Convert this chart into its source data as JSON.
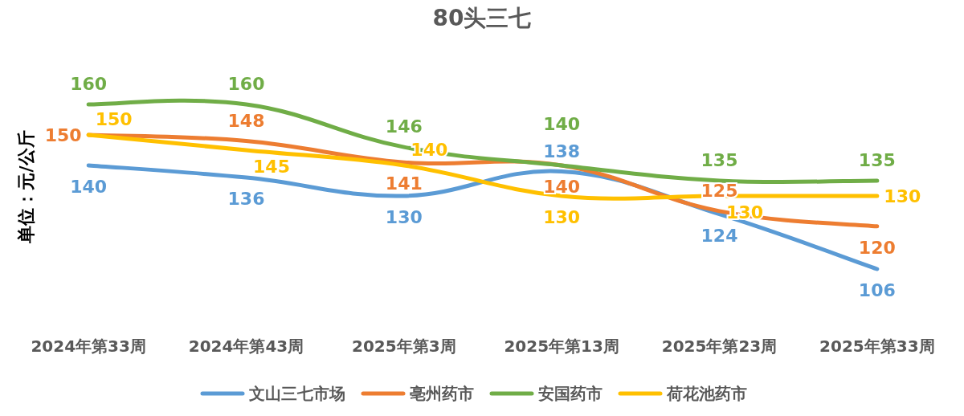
{
  "chart_data": {
    "type": "line",
    "title": "80头三七",
    "ylabel": "单位：元/公斤",
    "categories": [
      "2024年第33周",
      "2024年第43周",
      "2025年第3周",
      "2025年第13周",
      "2025年第23周",
      "2025年第33周"
    ],
    "series": [
      {
        "name": "文山三七市场",
        "color": "#5b9bd5",
        "values": [
          140,
          136,
          130,
          138,
          124,
          106
        ]
      },
      {
        "name": "亳州药市",
        "color": "#ed7d31",
        "values": [
          150,
          148,
          141,
          140,
          125,
          120
        ]
      },
      {
        "name": "安国药市",
        "color": "#70ad47",
        "values": [
          160,
          160,
          146,
          140,
          135,
          135
        ]
      },
      {
        "name": "荷花池药市",
        "color": "#ffc000",
        "values": [
          150,
          145,
          140,
          130,
          130,
          130
        ]
      }
    ],
    "data_labels": true,
    "legend": "bottom",
    "marker": "none",
    "line_style": "solid"
  }
}
